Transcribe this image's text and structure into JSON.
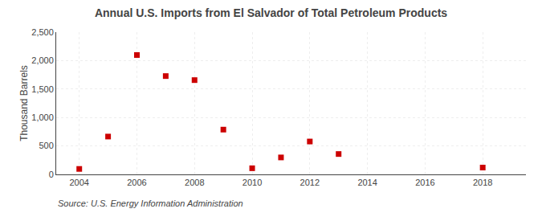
{
  "chart_data": {
    "type": "scatter",
    "title": "Annual U.S. Imports from El Salvador of Total Petroleum Products",
    "ylabel": "Thousand Barrels",
    "source": "Source: U.S. Energy Information Administration",
    "x": [
      2004,
      2005,
      2006,
      2007,
      2008,
      2009,
      2010,
      2011,
      2012,
      2013,
      2018
    ],
    "values": [
      96,
      665,
      2098,
      1728,
      1657,
      787,
      108,
      298,
      578,
      358,
      120
    ],
    "color": "#cc0000",
    "marker": "square",
    "xlim": [
      2003.2,
      2019.5
    ],
    "xticks": [
      2004,
      2006,
      2008,
      2010,
      2012,
      2014,
      2016,
      2018
    ],
    "ylim": [
      0,
      2500
    ],
    "yticks": [
      0,
      500,
      {
        "value": 1000,
        "label": "1,000"
      },
      {
        "value": 1500,
        "label": "1,500"
      },
      {
        "value": 2000,
        "label": "2,000"
      },
      {
        "value": 2500,
        "label": "2,500"
      }
    ],
    "grid": true
  }
}
